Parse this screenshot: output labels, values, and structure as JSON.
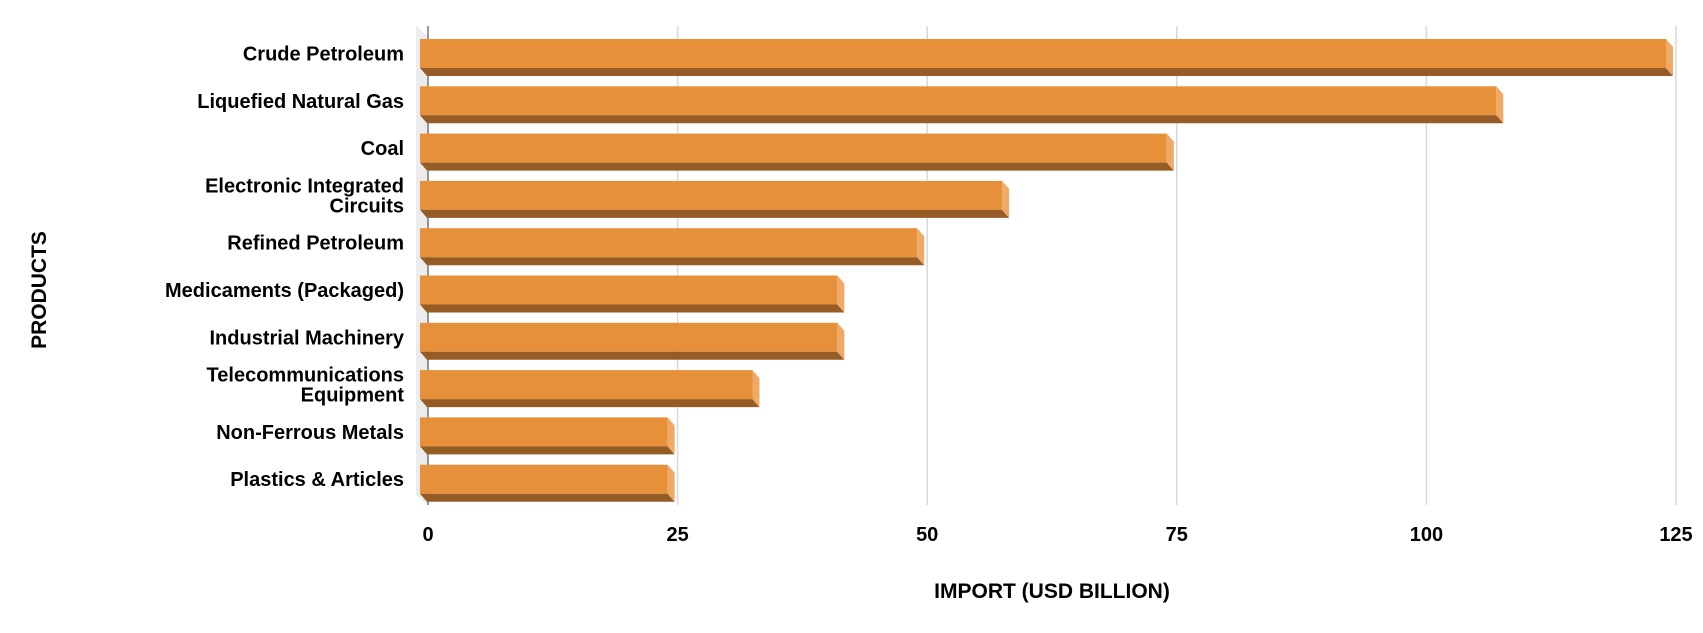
{
  "chart_data": {
    "type": "bar",
    "orientation": "horizontal",
    "style": "3d",
    "title": "",
    "xlabel": "IMPORT (USD BILLION)",
    "ylabel": "PRODUCTS",
    "categories": [
      "Crude Petroleum",
      "Liquefied Natural Gas",
      "Coal",
      "Electronic Integrated Circuits",
      "Refined Petroleum",
      "Medicaments (Packaged)",
      "Industrial Machinery",
      "Telecommunications Equipment",
      "Non-Ferrous Metals",
      "Plastics & Articles"
    ],
    "category_lines": [
      [
        "Crude Petroleum"
      ],
      [
        "Liquefied Natural Gas"
      ],
      [
        "Coal"
      ],
      [
        "Electronic Integrated",
        "Circuits"
      ],
      [
        "Refined Petroleum"
      ],
      [
        "Medicaments (Packaged)"
      ],
      [
        "Industrial Machinery"
      ],
      [
        "Telecommunications",
        "Equipment"
      ],
      [
        "Non-Ferrous Metals"
      ],
      [
        "Plastics & Articles"
      ]
    ],
    "values": [
      124,
      107,
      74,
      57.5,
      49,
      41,
      41,
      32.5,
      24,
      24
    ],
    "xlim": [
      0,
      125
    ],
    "xticks": [
      0,
      25,
      50,
      75,
      100,
      125
    ],
    "xtick_labels": [
      "0",
      "25",
      "50",
      "75",
      "100",
      "125"
    ],
    "grid": true,
    "legend": "none",
    "colors": {
      "bar_front": "#e6913a",
      "bar_bottom": "#965c26",
      "bar_side": "#eeaa66",
      "grid": "#d9d9d9",
      "wall": "#ececec"
    }
  }
}
